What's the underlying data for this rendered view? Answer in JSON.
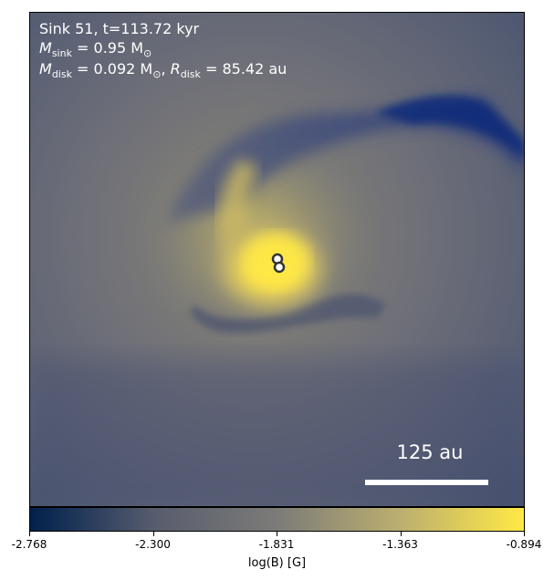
{
  "annotation": {
    "sink_line": "Sink 51, t=113.72 kyr",
    "msink_symbol": "M",
    "msink_sub": "sink",
    "msink_value": " = 0.95 M",
    "msink_sun": "⊙",
    "mdisk_symbol": "M",
    "mdisk_sub": "disk",
    "mdisk_value": " = 0.092 M",
    "mdisk_sun": "⊙",
    "rdisk_symbol": "R",
    "rdisk_sub": "disk",
    "rdisk_value": " = 85.42 au"
  },
  "scale_bar": {
    "label": "125 au"
  },
  "colorbar": {
    "label": "log(B) [G]",
    "ticks": [
      "-2.768",
      "-2.300",
      "-1.831",
      "-1.363",
      "-0.894"
    ],
    "colors": [
      "#00204c",
      "#575c6d",
      "#7c7b78",
      "#bcaf6f",
      "#ffe945"
    ]
  },
  "sinks": {
    "count": 2
  }
}
